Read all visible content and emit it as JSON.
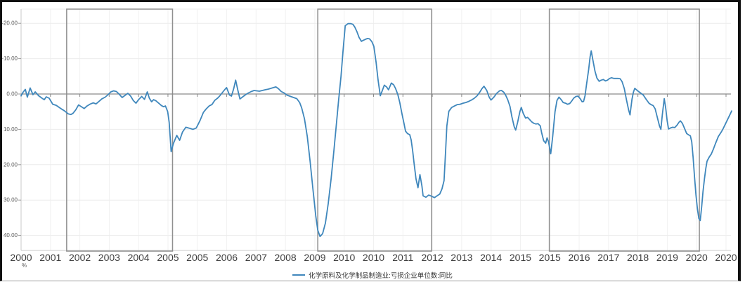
{
  "chart_data": {
    "type": "line",
    "title": "",
    "unit_label": "%",
    "colors": {
      "series": "#3f87bc",
      "zero_line": "#8a8a8a",
      "grid_h": "#ececec",
      "grid_v": "#f1f1f1",
      "axis": "#c9c9c9",
      "box_border": "#8f8f8f",
      "x_label": "#3d3d3d",
      "y_label": "#5a5a5a",
      "frame": "#0f0f0f"
    },
    "y_axis": {
      "inverted": true,
      "tick_values": [
        -20,
        -10,
        0,
        10,
        20,
        30,
        40
      ],
      "tick_labels": [
        "-20.00",
        "-10.00",
        "0.00",
        "10.00",
        "20.00",
        "30.00",
        "40.00"
      ]
    },
    "x_axis": {
      "tick_labels": [
        "2000",
        "2001",
        "2002",
        "2003",
        "2004",
        "2005",
        "2005",
        "2006",
        "2007",
        "2008",
        "2009",
        "2010",
        "2010",
        "2011",
        "2012",
        "2013",
        "2014",
        "2015",
        "2015",
        "2016",
        "2017",
        "2018",
        "2019",
        "2020",
        "2020"
      ]
    },
    "highlight_boxes": [
      [
        16.1,
        53.5
      ],
      [
        104.8,
        145.0
      ],
      [
        186.6,
        239.6
      ]
    ],
    "legend_position": "bottom-center",
    "series": [
      {
        "name": "化学原料及化学制品制造业:亏损企业单位数:同比",
        "color": "#3f87bc",
        "x_unit": "months-since-2000-01",
        "points": [
          [
            0,
            0.5
          ],
          [
            0.7,
            -0.5
          ],
          [
            1.5,
            -1.3
          ],
          [
            2.2,
            0.9
          ],
          [
            3.2,
            -1.7
          ],
          [
            4.2,
            0.2
          ],
          [
            5,
            -0.6
          ],
          [
            6.2,
            0.5
          ],
          [
            7.4,
            1.2
          ],
          [
            8.2,
            1.6
          ],
          [
            8.9,
            0.8
          ],
          [
            9.9,
            1.2
          ],
          [
            11.2,
            2.9
          ],
          [
            12.4,
            3.2
          ],
          [
            13.1,
            3.6
          ],
          [
            14.4,
            4.3
          ],
          [
            15.4,
            4.8
          ],
          [
            16.6,
            5.6
          ],
          [
            17.6,
            5.8
          ],
          [
            18.3,
            5.5
          ],
          [
            19.3,
            4.5
          ],
          [
            20.3,
            3.1
          ],
          [
            21.3,
            3.6
          ],
          [
            22.3,
            4.1
          ],
          [
            23.3,
            3.4
          ],
          [
            24.3,
            2.9
          ],
          [
            25.5,
            2.5
          ],
          [
            26.5,
            2.8
          ],
          [
            27.5,
            2.1
          ],
          [
            28.5,
            1.4
          ],
          [
            29.7,
            0.9
          ],
          [
            30.7,
            0.2
          ],
          [
            31.7,
            -0.6
          ],
          [
            32.7,
            -0.9
          ],
          [
            33.7,
            -0.7
          ],
          [
            34.7,
            0.1
          ],
          [
            35.7,
            1
          ],
          [
            36.7,
            0.4
          ],
          [
            37.7,
            -0.2
          ],
          [
            38.7,
            0.6
          ],
          [
            39.6,
            1.8
          ],
          [
            40.6,
            2.6
          ],
          [
            41.6,
            1.5
          ],
          [
            42.6,
            0.7
          ],
          [
            43.6,
            1.5
          ],
          [
            44.6,
            -0.6
          ],
          [
            45.3,
            1.2
          ],
          [
            46.1,
            2.2
          ],
          [
            46.8,
            1.6
          ],
          [
            47.6,
            1.9
          ],
          [
            48.6,
            2.6
          ],
          [
            49.6,
            3.3
          ],
          [
            50.3,
            3.6
          ],
          [
            51,
            3.4
          ],
          [
            51.8,
            5
          ],
          [
            52.3,
            8
          ],
          [
            53,
            16.3
          ],
          [
            53.8,
            14
          ],
          [
            55,
            11.7
          ],
          [
            56,
            13.1
          ],
          [
            57,
            10.8
          ],
          [
            58.2,
            9.4
          ],
          [
            59.5,
            9.7
          ],
          [
            60.7,
            10
          ],
          [
            61.9,
            9.6
          ],
          [
            63.2,
            7.5
          ],
          [
            64.4,
            5.2
          ],
          [
            65.4,
            4.2
          ],
          [
            66.4,
            3.4
          ],
          [
            67.4,
            3
          ],
          [
            68.4,
            1.8
          ],
          [
            69.4,
            1.2
          ],
          [
            70.1,
            0.6
          ],
          [
            71.1,
            -0.4
          ],
          [
            71.9,
            -1.2
          ],
          [
            72.6,
            -1.8
          ],
          [
            73.6,
            0.3
          ],
          [
            74.3,
            0.6
          ],
          [
            75.1,
            -1.5
          ],
          [
            75.8,
            -3.9
          ],
          [
            76.6,
            -1
          ],
          [
            77.3,
            1.4
          ],
          [
            78.3,
            0.8
          ],
          [
            79.3,
            0.2
          ],
          [
            80.3,
            -0.3
          ],
          [
            81.3,
            -0.7
          ],
          [
            82.3,
            -1
          ],
          [
            84.2,
            -0.8
          ],
          [
            86.2,
            -1.2
          ],
          [
            87.5,
            -1.4
          ],
          [
            88.7,
            -1.7
          ],
          [
            90,
            -2
          ],
          [
            90.9,
            -1.5
          ],
          [
            91.9,
            -0.7
          ],
          [
            92.9,
            -0.3
          ],
          [
            93.9,
            0.3
          ],
          [
            94.9,
            0.6
          ],
          [
            95.9,
            0.9
          ],
          [
            96.6,
            1.1
          ],
          [
            97.4,
            1.3
          ],
          [
            98.4,
            2.4
          ],
          [
            99.1,
            3.9
          ],
          [
            100.1,
            7
          ],
          [
            101.1,
            12
          ],
          [
            102.1,
            19
          ],
          [
            103.1,
            27
          ],
          [
            104.1,
            34.5
          ],
          [
            104.8,
            38.5
          ],
          [
            105.6,
            40.3
          ],
          [
            106.5,
            39.5
          ],
          [
            107.5,
            36.5
          ],
          [
            108.5,
            31
          ],
          [
            109.5,
            24
          ],
          [
            110.5,
            16
          ],
          [
            111.5,
            7.5
          ],
          [
            112.2,
            1.5
          ],
          [
            113,
            -5
          ],
          [
            113.7,
            -12
          ],
          [
            114.5,
            -19.3
          ],
          [
            115.5,
            -19.9
          ],
          [
            116.5,
            -19.9
          ],
          [
            117.2,
            -19.7
          ],
          [
            117.9,
            -18.9
          ],
          [
            118.7,
            -17.5
          ],
          [
            119.4,
            -16
          ],
          [
            120.2,
            -14.9
          ],
          [
            120.9,
            -15.2
          ],
          [
            121.7,
            -15.5
          ],
          [
            122.4,
            -15.7
          ],
          [
            123.1,
            -15.6
          ],
          [
            123.9,
            -14.8
          ],
          [
            124.6,
            -13.5
          ],
          [
            125.4,
            -9
          ],
          [
            126.1,
            -4
          ],
          [
            126.9,
            0.5
          ],
          [
            127.6,
            -1
          ],
          [
            128.3,
            -2.5
          ],
          [
            129.1,
            -2
          ],
          [
            129.8,
            -1.2
          ],
          [
            130.8,
            -3.1
          ],
          [
            131.6,
            -2.6
          ],
          [
            132.3,
            -1.5
          ],
          [
            133.1,
            0.2
          ],
          [
            133.8,
            2.5
          ],
          [
            134.5,
            5.5
          ],
          [
            135.3,
            8.5
          ],
          [
            135.8,
            10.5
          ],
          [
            136.5,
            11.2
          ],
          [
            137.3,
            11.5
          ],
          [
            137.8,
            13
          ],
          [
            138.3,
            16
          ],
          [
            138.8,
            19.5
          ],
          [
            139.5,
            24
          ],
          [
            140.2,
            26.5
          ],
          [
            140.9,
            22.8
          ],
          [
            141.6,
            26
          ],
          [
            142,
            28.8
          ],
          [
            143,
            29.2
          ],
          [
            144,
            28.6
          ],
          [
            145,
            28.9
          ],
          [
            146,
            29.3
          ],
          [
            146.9,
            28.8
          ],
          [
            147.9,
            28.3
          ],
          [
            148.7,
            26.8
          ],
          [
            149.4,
            24.5
          ],
          [
            149.9,
            17
          ],
          [
            150.4,
            9
          ],
          [
            151.1,
            4.9
          ],
          [
            152.1,
            3.8
          ],
          [
            153.1,
            3.4
          ],
          [
            154.1,
            3
          ],
          [
            155.1,
            2.9
          ],
          [
            156.1,
            2.6
          ],
          [
            157.1,
            2.4
          ],
          [
            158.1,
            2.1
          ],
          [
            159.1,
            1.7
          ],
          [
            160.1,
            1.2
          ],
          [
            161.1,
            0.5
          ],
          [
            162.1,
            -0.6
          ],
          [
            162.8,
            -1.5
          ],
          [
            163.5,
            -2.2
          ],
          [
            164.5,
            -1
          ],
          [
            165.3,
            0.8
          ],
          [
            166,
            1.7
          ],
          [
            167,
            0.9
          ],
          [
            168,
            -0.2
          ],
          [
            169,
            -0.9
          ],
          [
            169.7,
            -1
          ],
          [
            170.5,
            -0.5
          ],
          [
            171.2,
            0.4
          ],
          [
            171.9,
            1.6
          ],
          [
            172.7,
            3.5
          ],
          [
            173.4,
            6.5
          ],
          [
            174.2,
            9.3
          ],
          [
            174.7,
            10.2
          ],
          [
            175.4,
            8
          ],
          [
            176.2,
            5
          ],
          [
            176.7,
            3.8
          ],
          [
            177.4,
            5.5
          ],
          [
            178.2,
            6.8
          ],
          [
            178.9,
            6.6
          ],
          [
            179.6,
            7.2
          ],
          [
            180.4,
            7.9
          ],
          [
            181.1,
            8.3
          ],
          [
            181.9,
            8.5
          ],
          [
            182.6,
            8.4
          ],
          [
            183.4,
            9
          ],
          [
            183.9,
            11
          ],
          [
            184.6,
            13.2
          ],
          [
            185.3,
            13.9
          ],
          [
            185.8,
            12.4
          ],
          [
            186.3,
            13.5
          ],
          [
            187.1,
            16.9
          ],
          [
            187.8,
            12
          ],
          [
            188.6,
            5
          ],
          [
            189.3,
            1.8
          ],
          [
            190,
            0.9
          ],
          [
            190.8,
            1.6
          ],
          [
            191.5,
            2.4
          ],
          [
            192.3,
            2.6
          ],
          [
            193,
            2.9
          ],
          [
            193.8,
            2.7
          ],
          [
            194.5,
            2
          ],
          [
            195.2,
            1.2
          ],
          [
            196,
            0.7
          ],
          [
            196.7,
            0.6
          ],
          [
            197.5,
            1.3
          ],
          [
            198.2,
            2.2
          ],
          [
            198.7,
            2.1
          ],
          [
            199.2,
            0.5
          ],
          [
            199.7,
            -2.5
          ],
          [
            200.5,
            -7
          ],
          [
            201,
            -10.5
          ],
          [
            201.4,
            -12.2
          ],
          [
            201.9,
            -10
          ],
          [
            202.7,
            -6.5
          ],
          [
            203.4,
            -4.5
          ],
          [
            204.2,
            -3.6
          ],
          [
            204.9,
            -3.9
          ],
          [
            205.7,
            -4.1
          ],
          [
            206.4,
            -3.7
          ],
          [
            207.1,
            -3.9
          ],
          [
            207.9,
            -4.4
          ],
          [
            208.6,
            -4.6
          ],
          [
            209.4,
            -4.4
          ],
          [
            210.9,
            -4.4
          ],
          [
            211.6,
            -4.3
          ],
          [
            212.3,
            -3.5
          ],
          [
            213.1,
            -1.5
          ],
          [
            213.8,
            1.5
          ],
          [
            214.6,
            4.5
          ],
          [
            215.1,
            5.9
          ],
          [
            215.8,
            1.5
          ],
          [
            216.3,
            -0.5
          ],
          [
            216.8,
            -1.6
          ],
          [
            217.8,
            -0.9
          ],
          [
            218.8,
            -0.3
          ],
          [
            219.8,
            0.3
          ],
          [
            220.8,
            1.5
          ],
          [
            221.8,
            2.6
          ],
          [
            222.5,
            3
          ],
          [
            223.3,
            3.3
          ],
          [
            224,
            4.2
          ],
          [
            224.7,
            6.5
          ],
          [
            225.5,
            9
          ],
          [
            226,
            10
          ],
          [
            226.5,
            6
          ],
          [
            227.2,
            1.3
          ],
          [
            227.7,
            4
          ],
          [
            228.2,
            7.5
          ],
          [
            228.7,
            9.9
          ],
          [
            229.4,
            9.6
          ],
          [
            230.2,
            9.4
          ],
          [
            230.9,
            9.5
          ],
          [
            231.7,
            8.8
          ],
          [
            232.4,
            8
          ],
          [
            232.9,
            7.6
          ],
          [
            233.6,
            8.3
          ],
          [
            234.4,
            9.8
          ],
          [
            235.1,
            11.2
          ],
          [
            235.9,
            11.6
          ],
          [
            236.4,
            11.8
          ],
          [
            236.9,
            13.5
          ],
          [
            237.4,
            18
          ],
          [
            237.9,
            23.5
          ],
          [
            238.4,
            28.5
          ],
          [
            238.9,
            32.5
          ],
          [
            239.4,
            35.2
          ],
          [
            239.9,
            35.8
          ],
          [
            240.4,
            32
          ],
          [
            240.9,
            27.5
          ],
          [
            241.4,
            24
          ],
          [
            241.9,
            21
          ],
          [
            242.3,
            19
          ],
          [
            243.1,
            17.8
          ],
          [
            243.8,
            17
          ],
          [
            244.6,
            15.5
          ],
          [
            245.3,
            14
          ],
          [
            246.3,
            12
          ],
          [
            247.3,
            10.8
          ],
          [
            248,
            9.8
          ],
          [
            248.8,
            8.5
          ],
          [
            249.5,
            7.3
          ],
          [
            250.3,
            6
          ],
          [
            251,
            4.8
          ]
        ]
      }
    ]
  }
}
